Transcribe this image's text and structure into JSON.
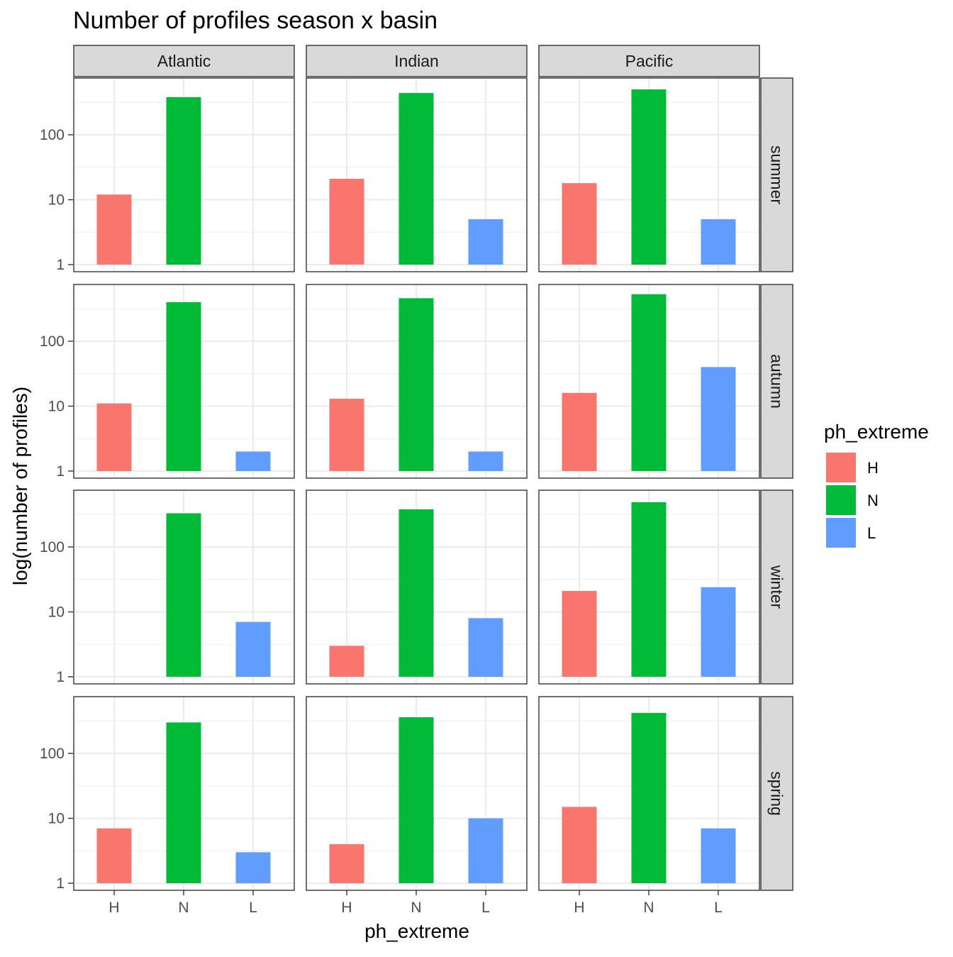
{
  "chart_data": {
    "type": "bar",
    "title": "Number of profiles season x basin",
    "xlabel": "ph_extreme",
    "ylabel": "log(number of profiles)",
    "y_scale": "log10",
    "ylim": [
      1,
      600
    ],
    "y_ticks": [
      1,
      10,
      100
    ],
    "y_tick_labels": [
      "1",
      "10",
      "100"
    ],
    "categories": [
      "H",
      "N",
      "L"
    ],
    "columns": [
      "Atlantic",
      "Indian",
      "Pacific"
    ],
    "rows": [
      "summer",
      "autumn",
      "winter",
      "spring"
    ],
    "colors": {
      "H": "#F8766D",
      "N": "#00BA38",
      "L": "#619CFF"
    },
    "legend": {
      "title": "ph_extreme",
      "position": "right",
      "entries": [
        "H",
        "N",
        "L"
      ]
    },
    "panels": {
      "summer": {
        "Atlantic": {
          "H": 12,
          "N": 380,
          "L": null
        },
        "Indian": {
          "H": 21,
          "N": 440,
          "L": 5
        },
        "Pacific": {
          "H": 18,
          "N": 500,
          "L": 5
        }
      },
      "autumn": {
        "Atlantic": {
          "H": 11,
          "N": 400,
          "L": 2
        },
        "Indian": {
          "H": 13,
          "N": 460,
          "L": 2
        },
        "Pacific": {
          "H": 16,
          "N": 530,
          "L": 40
        }
      },
      "winter": {
        "Atlantic": {
          "H": null,
          "N": 330,
          "L": 7
        },
        "Indian": {
          "H": 3,
          "N": 380,
          "L": 8
        },
        "Pacific": {
          "H": 21,
          "N": 490,
          "L": 24
        }
      },
      "spring": {
        "Atlantic": {
          "H": 7,
          "N": 300,
          "L": 3
        },
        "Indian": {
          "H": 4,
          "N": 360,
          "L": 10
        },
        "Pacific": {
          "H": 15,
          "N": 420,
          "L": 7
        }
      }
    }
  }
}
